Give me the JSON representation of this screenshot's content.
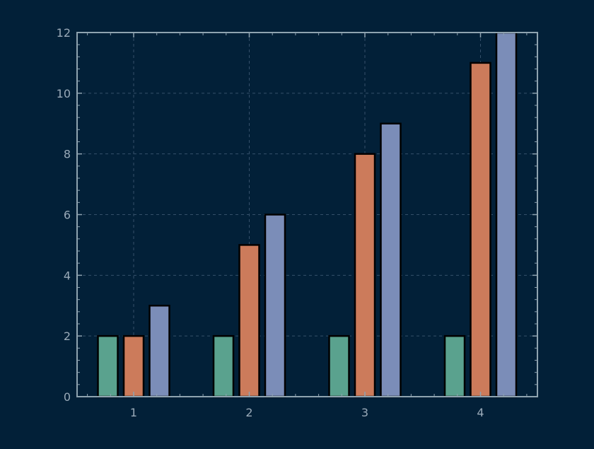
{
  "chart_data": {
    "type": "bar",
    "categories": [
      "1",
      "2",
      "3",
      "4"
    ],
    "series": [
      {
        "values": [
          2,
          2,
          2,
          2
        ],
        "color": "#5aa28e"
      },
      {
        "values": [
          2,
          5,
          8,
          11
        ],
        "color": "#cc7b5b"
      },
      {
        "values": [
          3,
          6,
          9,
          12
        ],
        "color": "#7b8db8"
      }
    ],
    "title": "",
    "xlabel": "",
    "ylabel": "",
    "ylim": [
      0,
      12
    ],
    "yticks": [
      0,
      2,
      4,
      6,
      8,
      10,
      12
    ],
    "grid": true,
    "legend": "none"
  },
  "colors": {
    "background": "#022038",
    "axis": "#8fa3b0",
    "grid": "#35506a",
    "tick_label": "#9aaab8",
    "bar_edge": "#000000"
  }
}
